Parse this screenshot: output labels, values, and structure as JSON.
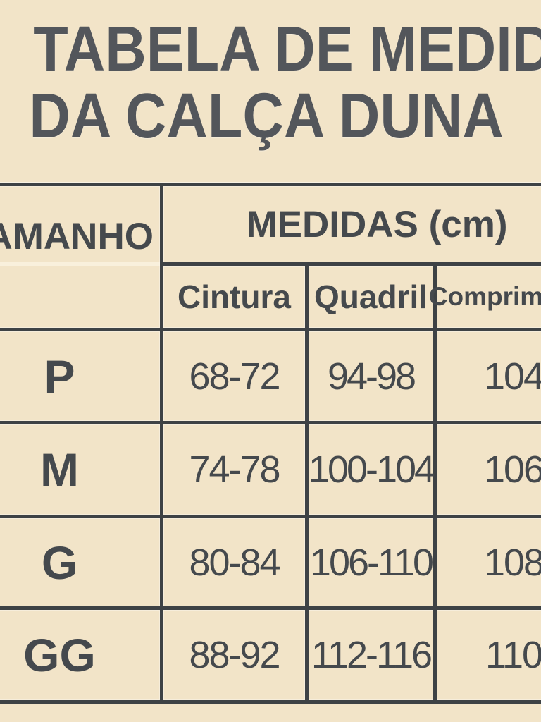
{
  "title": {
    "line1": "TABELA DE MEDIDAS",
    "line2": "DA CALÇA DUNA"
  },
  "table": {
    "size_header": "TAMANHO",
    "measures_header": "MEDIDAS (cm)",
    "columns": [
      "Cintura",
      "Quadril",
      "Comprimento"
    ],
    "rows": [
      {
        "size": "P",
        "cintura": "68-72",
        "quadril": "94-98",
        "comprimento": "104"
      },
      {
        "size": "M",
        "cintura": "74-78",
        "quadril": "100-104",
        "comprimento": "106"
      },
      {
        "size": "G",
        "cintura": "80-84",
        "quadril": "106-110",
        "comprimento": "108"
      },
      {
        "size": "GG",
        "cintura": "88-92",
        "quadril": "112-116",
        "comprimento": "110"
      }
    ]
  },
  "colors": {
    "background": "#f2e4c8",
    "grid_line": "#3e4245",
    "text": "#45494d",
    "title_text": "#53565b"
  }
}
